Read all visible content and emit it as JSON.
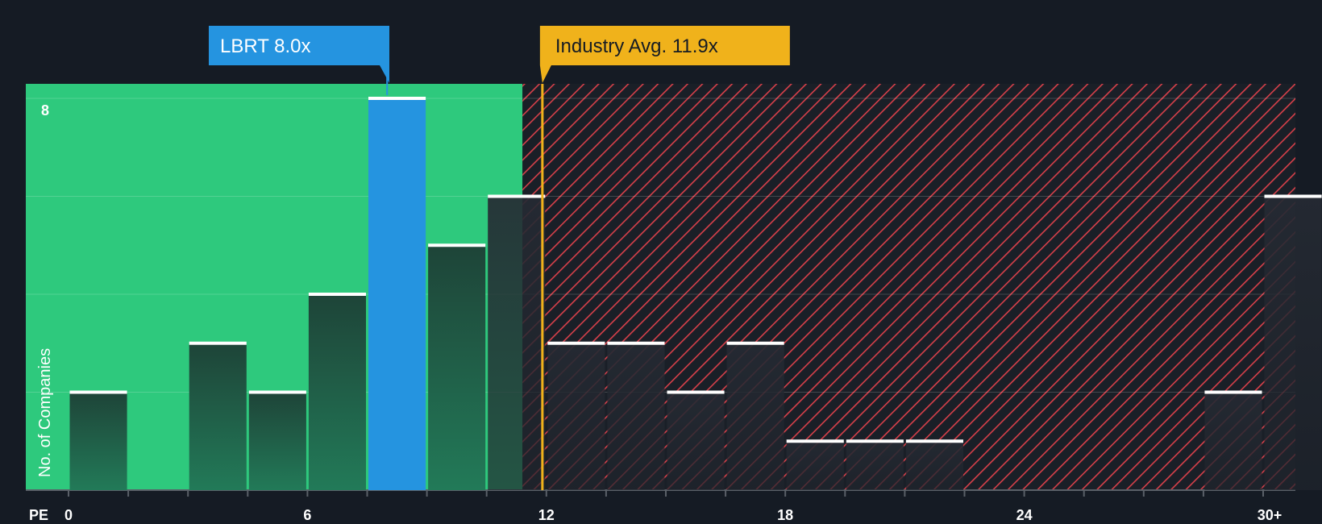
{
  "chart_data": {
    "type": "bar",
    "subject": {
      "ticker": "LBRT",
      "value": 8.0,
      "label": "LBRT 8.0x"
    },
    "industry_avg": {
      "value": 11.9,
      "label": "Industry Avg. 11.9x"
    },
    "xlabel": "PE",
    "ylabel": "No. of Companies",
    "ylim": [
      0,
      8
    ],
    "y_tick_labels": [
      {
        "value": 8,
        "label": "8"
      }
    ],
    "y_gridlines": [
      2,
      4,
      6,
      8
    ],
    "x_tick_labels": [
      {
        "value": 0,
        "label": "0"
      },
      {
        "value": 6,
        "label": "6"
      },
      {
        "value": 12,
        "label": "12"
      },
      {
        "value": 18,
        "label": "18"
      },
      {
        "value": 24,
        "label": "24"
      },
      {
        "value": 30,
        "label": "30+"
      }
    ],
    "bin_width": 1.5,
    "undervalued_threshold": 11.4,
    "bins": [
      {
        "start": 0,
        "count": 2
      },
      {
        "start": 1.5,
        "count": 0
      },
      {
        "start": 3,
        "count": 3
      },
      {
        "start": 4.5,
        "count": 2
      },
      {
        "start": 6,
        "count": 4
      },
      {
        "start": 7.5,
        "count": 8,
        "highlight": true
      },
      {
        "start": 9,
        "count": 5
      },
      {
        "start": 10.5,
        "count": 6
      },
      {
        "start": 12,
        "count": 3
      },
      {
        "start": 13.5,
        "count": 3
      },
      {
        "start": 15,
        "count": 2
      },
      {
        "start": 16.5,
        "count": 3
      },
      {
        "start": 18,
        "count": 1
      },
      {
        "start": 19.5,
        "count": 1
      },
      {
        "start": 21,
        "count": 1
      },
      {
        "start": 22.5,
        "count": 0
      },
      {
        "start": 24,
        "count": 0
      },
      {
        "start": 25.5,
        "count": 0
      },
      {
        "start": 27,
        "count": 0
      },
      {
        "start": 28.5,
        "count": 2
      },
      {
        "start": 30,
        "count": 6
      }
    ],
    "colors": {
      "background": "#151b24",
      "undervalued": "#2ec97d",
      "overvalued": "#e0424a",
      "highlight": "#2594e0",
      "industry": "#f0b21b",
      "bar": "#1e4a3d",
      "bar_top": "#ffffff"
    }
  }
}
